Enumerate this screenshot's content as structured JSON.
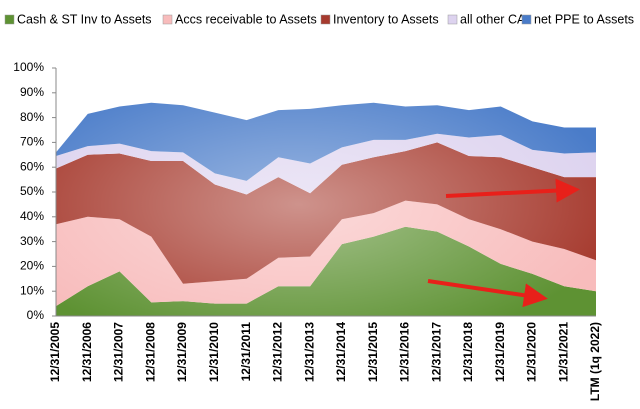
{
  "chart_data": {
    "type": "stacked-area",
    "categories": [
      "12/31/2005",
      "12/31/2006",
      "12/31/2007",
      "12/31/2008",
      "12/31/2009",
      "12/31/2010",
      "12/31/2011",
      "12/31/2012",
      "12/31/2013",
      "12/31/2014",
      "12/31/2015",
      "12/31/2016",
      "12/31/2017",
      "12/31/2018",
      "12/31/2019",
      "12/31/2020",
      "12/31/2021",
      "LTM (1q 2022)"
    ],
    "series": [
      {
        "name": "Cash & ST Inv to Assets",
        "color": "#5e9233",
        "values": [
          4,
          12,
          18,
          5.5,
          6,
          5,
          5,
          12,
          12,
          29,
          32,
          36,
          34,
          28,
          21,
          17,
          12,
          10
        ]
      },
      {
        "name": "Accs receivable to Assets",
        "color": "#f8bcbc",
        "values": [
          33,
          28,
          21,
          26.5,
          7,
          9,
          10,
          11.5,
          12,
          10,
          9.5,
          10.5,
          11,
          11,
          14,
          13,
          15,
          12.5
        ]
      },
      {
        "name": "Inventory to Assets",
        "color": "#a63a2e",
        "values": [
          22.5,
          25,
          26.5,
          30.5,
          49.5,
          39,
          34,
          32.5,
          25.5,
          22,
          22.5,
          20,
          25,
          25.5,
          29,
          30,
          29,
          33.5
        ]
      },
      {
        "name": "all other CA",
        "color": "#ddd3ef",
        "values": [
          5,
          3.5,
          4,
          4,
          3.5,
          4.5,
          5.5,
          8,
          12,
          7,
          7,
          4.5,
          3.5,
          7.5,
          9,
          7,
          9.5,
          10
        ]
      },
      {
        "name": "net PPE to Assets",
        "color": "#4a7cc9",
        "values": [
          1.5,
          13,
          15,
          19.5,
          19,
          24.5,
          24.5,
          19,
          22,
          17,
          15,
          13.5,
          11.5,
          11,
          11.5,
          11.5,
          10.5,
          10
        ]
      }
    ],
    "ylim": [
      0,
      100
    ],
    "yticks": [
      {
        "value": 0,
        "label": "0%"
      },
      {
        "value": 10,
        "label": "10%"
      },
      {
        "value": 20,
        "label": "20%"
      },
      {
        "value": 30,
        "label": "30%"
      },
      {
        "value": 40,
        "label": "40%"
      },
      {
        "value": 50,
        "label": "50%"
      },
      {
        "value": 60,
        "label": "60%"
      },
      {
        "value": 70,
        "label": "70%"
      },
      {
        "value": 80,
        "label": "80%"
      },
      {
        "value": 90,
        "label": "90%"
      },
      {
        "value": 100,
        "label": "100%"
      }
    ],
    "legend": "top"
  }
}
